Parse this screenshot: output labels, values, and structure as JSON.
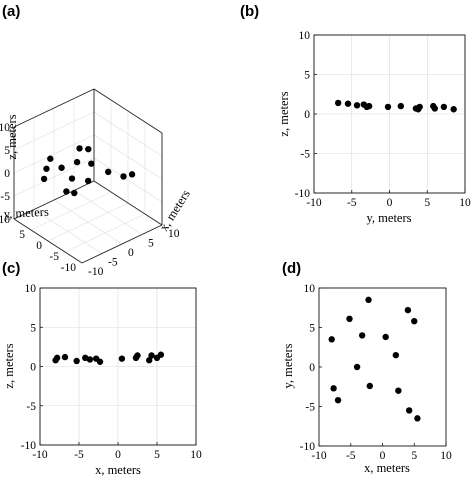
{
  "chart_data": [
    {
      "panel": "(a)",
      "type": "scatter",
      "projection": "3d",
      "xlabel": "x, meters",
      "ylabel": "y, meters",
      "zlabel": "z, meters",
      "xlim": [
        -10,
        10
      ],
      "ylim": [
        -10,
        10
      ],
      "zlim": [
        -10,
        10
      ],
      "xticks": [
        "-10",
        "-5",
        "0",
        "5",
        "10"
      ],
      "yticks": [
        "5",
        "0",
        "-5",
        "-10"
      ],
      "zticks": [
        "10",
        "5",
        "0",
        "-5",
        "-10"
      ],
      "grid": true,
      "points": [
        {
          "x": -8,
          "y": 3.5,
          "z": 1
        },
        {
          "x": -7.7,
          "y": -2.7,
          "z": 1.1
        },
        {
          "x": -7,
          "y": -4.2,
          "z": 1.2
        },
        {
          "x": -5.2,
          "y": 6.1,
          "z": 0.8
        },
        {
          "x": -4,
          "y": 0,
          "z": 1.1
        },
        {
          "x": -3.2,
          "y": 4,
          "z": 1.2
        },
        {
          "x": -2.2,
          "y": 8.5,
          "z": 0.6
        },
        {
          "x": -2,
          "y": -2.4,
          "z": 0.9
        },
        {
          "x": 0.5,
          "y": 3.8,
          "z": 1.0
        },
        {
          "x": 2.1,
          "y": 1.5,
          "z": 1.1
        },
        {
          "x": 2.5,
          "y": -3,
          "z": 1.3
        },
        {
          "x": 4,
          "y": 7.2,
          "z": 0.9
        },
        {
          "x": 4.2,
          "y": -5.5,
          "z": 0.8
        },
        {
          "x": 5,
          "y": 5.8,
          "z": 1.0
        },
        {
          "x": 5.5,
          "y": -6.5,
          "z": 1.2
        }
      ]
    },
    {
      "panel": "(b)",
      "type": "scatter",
      "xlabel": "y, meters",
      "ylabel": "z, meters",
      "xlim": [
        -10,
        10
      ],
      "ylim": [
        -10,
        10
      ],
      "xticks": [
        -10,
        -5,
        0,
        5,
        10
      ],
      "yticks": [
        10,
        5,
        0,
        -5,
        -10
      ],
      "grid": true,
      "points": [
        {
          "x": -6.8,
          "y": 1.4
        },
        {
          "x": -5.5,
          "y": 1.3
        },
        {
          "x": -4.3,
          "y": 1.1
        },
        {
          "x": -3.4,
          "y": 1.2
        },
        {
          "x": -2.7,
          "y": 1.0
        },
        {
          "x": -3.0,
          "y": 0.9
        },
        {
          "x": -0.2,
          "y": 0.9
        },
        {
          "x": 1.5,
          "y": 1.0
        },
        {
          "x": 3.5,
          "y": 0.7
        },
        {
          "x": 4.0,
          "y": 0.9
        },
        {
          "x": 3.8,
          "y": 0.6
        },
        {
          "x": 5.8,
          "y": 1.0
        },
        {
          "x": 6.0,
          "y": 0.7
        },
        {
          "x": 7.2,
          "y": 0.9
        },
        {
          "x": 8.5,
          "y": 0.6
        }
      ]
    },
    {
      "panel": "(c)",
      "type": "scatter",
      "xlabel": "x, meters",
      "ylabel": "z, meters",
      "xlim": [
        -10,
        10
      ],
      "ylim": [
        -10,
        10
      ],
      "xticks": [
        -10,
        -5,
        0,
        5,
        10
      ],
      "yticks": [
        10,
        5,
        0,
        -5,
        -10
      ],
      "grid": true,
      "points": [
        {
          "x": -8,
          "y": 0.8
        },
        {
          "x": -7.8,
          "y": 1.1
        },
        {
          "x": -6.8,
          "y": 1.2
        },
        {
          "x": -5.3,
          "y": 0.7
        },
        {
          "x": -4.2,
          "y": 1.1
        },
        {
          "x": -3.6,
          "y": 0.9
        },
        {
          "x": -2.8,
          "y": 1.0
        },
        {
          "x": -2.3,
          "y": 0.6
        },
        {
          "x": 0.5,
          "y": 1.0
        },
        {
          "x": 2.3,
          "y": 1.1
        },
        {
          "x": 2.5,
          "y": 1.4
        },
        {
          "x": 4.0,
          "y": 0.8
        },
        {
          "x": 4.3,
          "y": 1.4
        },
        {
          "x": 5.0,
          "y": 1.1
        },
        {
          "x": 5.5,
          "y": 1.5
        }
      ]
    },
    {
      "panel": "(d)",
      "type": "scatter",
      "xlabel": "x, meters",
      "ylabel": "y, meters",
      "xlim": [
        -10,
        10
      ],
      "ylim": [
        -10,
        10
      ],
      "xticks": [
        -10,
        -5,
        0,
        5,
        10
      ],
      "yticks": [
        10,
        5,
        0,
        -5,
        -10
      ],
      "grid": false,
      "points": [
        {
          "x": -8,
          "y": 3.5
        },
        {
          "x": -7.7,
          "y": -2.7
        },
        {
          "x": -7,
          "y": -4.2
        },
        {
          "x": -5.2,
          "y": 6.1
        },
        {
          "x": -4,
          "y": 0
        },
        {
          "x": -3.2,
          "y": 4
        },
        {
          "x": -2.2,
          "y": 8.5
        },
        {
          "x": -2,
          "y": -2.4
        },
        {
          "x": 0.5,
          "y": 3.8
        },
        {
          "x": 2.1,
          "y": 1.5
        },
        {
          "x": 2.5,
          "y": -3
        },
        {
          "x": 4,
          "y": 7.2
        },
        {
          "x": 4.2,
          "y": -5.5
        },
        {
          "x": 5,
          "y": 5.8
        },
        {
          "x": 5.5,
          "y": -6.5
        }
      ]
    }
  ]
}
